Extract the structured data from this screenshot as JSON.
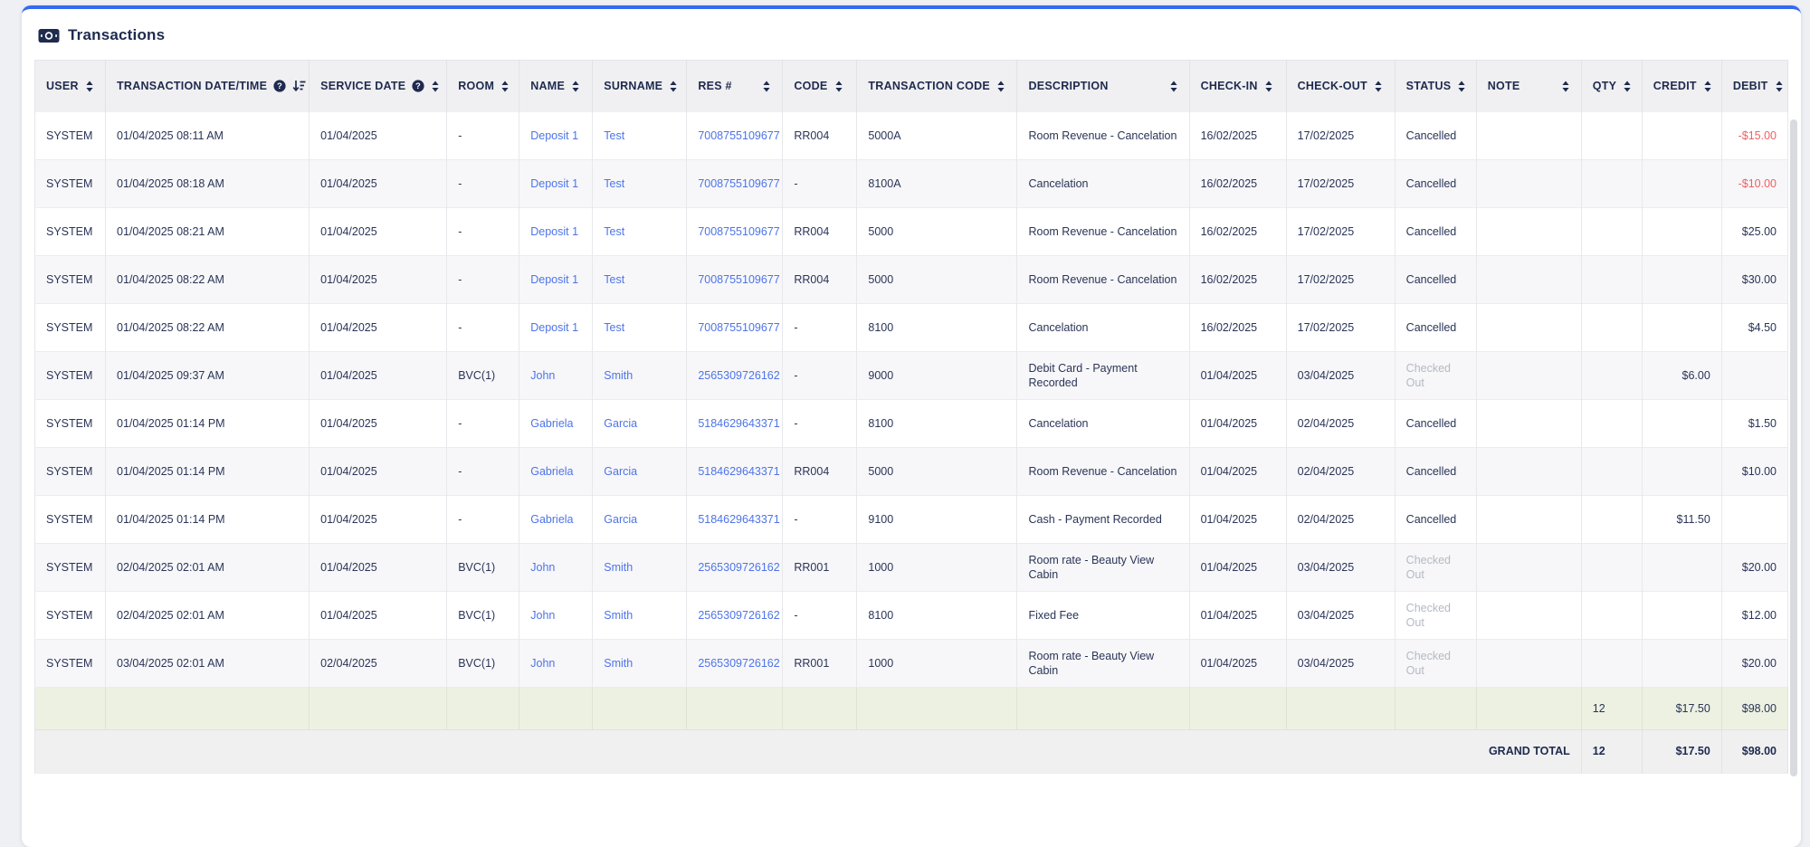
{
  "page": {
    "title": "Transactions"
  },
  "colors": {
    "accent_top": "#3569f0",
    "heading_navy": "#1e2a4e",
    "link_blue": "#4d74e8",
    "negative_red": "#f15f5f",
    "muted_status": "#b4b9c3",
    "subtotal_green_bg": "#ecf1e1",
    "grand_total_bg": "#f0f0f1",
    "header_bg": "#f0f0f2"
  },
  "icons": {
    "title": "money-banknote-icon",
    "help": "help-circle-icon",
    "sort": "sort-arrows-icon",
    "sort_active": "sort-descending-icon"
  },
  "table": {
    "columns": [
      {
        "key": "user",
        "label": "USER",
        "help": false,
        "sort": "default"
      },
      {
        "key": "datetime",
        "label": "TRANSACTION DATE/TIME",
        "help": true,
        "sort": "active-desc"
      },
      {
        "key": "service_date",
        "label": "SERVICE DATE",
        "help": true,
        "sort": "default"
      },
      {
        "key": "room",
        "label": "ROOM",
        "help": false,
        "sort": "default"
      },
      {
        "key": "name",
        "label": "NAME",
        "help": false,
        "sort": "default"
      },
      {
        "key": "surname",
        "label": "SURNAME",
        "help": false,
        "sort": "default"
      },
      {
        "key": "res",
        "label": "RES #",
        "help": false,
        "sort": "default",
        "spread": true
      },
      {
        "key": "code",
        "label": "CODE",
        "help": false,
        "sort": "default"
      },
      {
        "key": "txn_code",
        "label": "TRANSACTION CODE",
        "help": false,
        "sort": "default"
      },
      {
        "key": "description",
        "label": "DESCRIPTION",
        "help": false,
        "sort": "default",
        "spread": true
      },
      {
        "key": "check_in",
        "label": "CHECK-IN",
        "help": false,
        "sort": "default"
      },
      {
        "key": "check_out",
        "label": "CHECK-OUT",
        "help": false,
        "sort": "default"
      },
      {
        "key": "status",
        "label": "STATUS",
        "help": false,
        "sort": "default"
      },
      {
        "key": "note",
        "label": "NOTE",
        "help": false,
        "sort": "default",
        "spread": true
      },
      {
        "key": "qty",
        "label": "QTY",
        "help": false,
        "sort": "default"
      },
      {
        "key": "credit",
        "label": "CREDIT",
        "help": false,
        "sort": "default"
      },
      {
        "key": "debit",
        "label": "DEBIT",
        "help": false,
        "sort": "default"
      }
    ],
    "rows": [
      {
        "user": "SYSTEM",
        "datetime": "01/04/2025 08:11 AM",
        "service_date": "01/04/2025",
        "room": "-",
        "name": "Deposit 1",
        "surname": "Test",
        "res": "7008755109677",
        "code": "RR004",
        "txn_code": "5000A",
        "description": "Room Revenue - Cancelation",
        "check_in": "16/02/2025",
        "check_out": "17/02/2025",
        "status": "Cancelled",
        "note": "",
        "qty": "",
        "credit": "",
        "debit": "-$15.00"
      },
      {
        "user": "SYSTEM",
        "datetime": "01/04/2025 08:18 AM",
        "service_date": "01/04/2025",
        "room": "-",
        "name": "Deposit 1",
        "surname": "Test",
        "res": "7008755109677",
        "code": "-",
        "txn_code": "8100A",
        "description": "Cancelation",
        "check_in": "16/02/2025",
        "check_out": "17/02/2025",
        "status": "Cancelled",
        "note": "",
        "qty": "",
        "credit": "",
        "debit": "-$10.00"
      },
      {
        "user": "SYSTEM",
        "datetime": "01/04/2025 08:21 AM",
        "service_date": "01/04/2025",
        "room": "-",
        "name": "Deposit 1",
        "surname": "Test",
        "res": "7008755109677",
        "code": "RR004",
        "txn_code": "5000",
        "description": "Room Revenue - Cancelation",
        "check_in": "16/02/2025",
        "check_out": "17/02/2025",
        "status": "Cancelled",
        "note": "",
        "qty": "",
        "credit": "",
        "debit": "$25.00"
      },
      {
        "user": "SYSTEM",
        "datetime": "01/04/2025 08:22 AM",
        "service_date": "01/04/2025",
        "room": "-",
        "name": "Deposit 1",
        "surname": "Test",
        "res": "7008755109677",
        "code": "RR004",
        "txn_code": "5000",
        "description": "Room Revenue - Cancelation",
        "check_in": "16/02/2025",
        "check_out": "17/02/2025",
        "status": "Cancelled",
        "note": "",
        "qty": "",
        "credit": "",
        "debit": "$30.00"
      },
      {
        "user": "SYSTEM",
        "datetime": "01/04/2025 08:22 AM",
        "service_date": "01/04/2025",
        "room": "-",
        "name": "Deposit 1",
        "surname": "Test",
        "res": "7008755109677",
        "code": "-",
        "txn_code": "8100",
        "description": "Cancelation",
        "check_in": "16/02/2025",
        "check_out": "17/02/2025",
        "status": "Cancelled",
        "note": "",
        "qty": "",
        "credit": "",
        "debit": "$4.50"
      },
      {
        "user": "SYSTEM",
        "datetime": "01/04/2025 09:37 AM",
        "service_date": "01/04/2025",
        "room": "BVC(1)",
        "name": "John",
        "surname": "Smith",
        "res": "2565309726162",
        "code": "-",
        "txn_code": "9000",
        "description": "Debit Card - Payment Recorded",
        "check_in": "01/04/2025",
        "check_out": "03/04/2025",
        "status": "Checked Out",
        "note": "",
        "qty": "",
        "credit": "$6.00",
        "debit": ""
      },
      {
        "user": "SYSTEM",
        "datetime": "01/04/2025 01:14 PM",
        "service_date": "01/04/2025",
        "room": "-",
        "name": "Gabriela",
        "surname": "Garcia",
        "res": "5184629643371",
        "code": "-",
        "txn_code": "8100",
        "description": "Cancelation",
        "check_in": "01/04/2025",
        "check_out": "02/04/2025",
        "status": "Cancelled",
        "note": "",
        "qty": "",
        "credit": "",
        "debit": "$1.50"
      },
      {
        "user": "SYSTEM",
        "datetime": "01/04/2025 01:14 PM",
        "service_date": "01/04/2025",
        "room": "-",
        "name": "Gabriela",
        "surname": "Garcia",
        "res": "5184629643371",
        "code": "RR004",
        "txn_code": "5000",
        "description": "Room Revenue - Cancelation",
        "check_in": "01/04/2025",
        "check_out": "02/04/2025",
        "status": "Cancelled",
        "note": "",
        "qty": "",
        "credit": "",
        "debit": "$10.00"
      },
      {
        "user": "SYSTEM",
        "datetime": "01/04/2025 01:14 PM",
        "service_date": "01/04/2025",
        "room": "-",
        "name": "Gabriela",
        "surname": "Garcia",
        "res": "5184629643371",
        "code": "-",
        "txn_code": "9100",
        "description": "Cash - Payment Recorded",
        "check_in": "01/04/2025",
        "check_out": "02/04/2025",
        "status": "Cancelled",
        "note": "",
        "qty": "",
        "credit": "$11.50",
        "debit": ""
      },
      {
        "user": "SYSTEM",
        "datetime": "02/04/2025 02:01 AM",
        "service_date": "01/04/2025",
        "room": "BVC(1)",
        "name": "John",
        "surname": "Smith",
        "res": "2565309726162",
        "code": "RR001",
        "txn_code": "1000",
        "description": "Room rate - Beauty View Cabin",
        "check_in": "01/04/2025",
        "check_out": "03/04/2025",
        "status": "Checked Out",
        "note": "",
        "qty": "",
        "credit": "",
        "debit": "$20.00"
      },
      {
        "user": "SYSTEM",
        "datetime": "02/04/2025 02:01 AM",
        "service_date": "01/04/2025",
        "room": "BVC(1)",
        "name": "John",
        "surname": "Smith",
        "res": "2565309726162",
        "code": "-",
        "txn_code": "8100",
        "description": "Fixed Fee",
        "check_in": "01/04/2025",
        "check_out": "03/04/2025",
        "status": "Checked Out",
        "note": "",
        "qty": "",
        "credit": "",
        "debit": "$12.00"
      },
      {
        "user": "SYSTEM",
        "datetime": "03/04/2025 02:01 AM",
        "service_date": "02/04/2025",
        "room": "BVC(1)",
        "name": "John",
        "surname": "Smith",
        "res": "2565309726162",
        "code": "RR001",
        "txn_code": "1000",
        "description": "Room rate - Beauty View Cabin",
        "check_in": "01/04/2025",
        "check_out": "03/04/2025",
        "status": "Checked Out",
        "note": "",
        "qty": "",
        "credit": "",
        "debit": "$20.00"
      }
    ],
    "subtotal": {
      "qty": "12",
      "credit": "$17.50",
      "debit": "$98.00"
    },
    "grand_total": {
      "label": "GRAND TOTAL",
      "qty": "12",
      "credit": "$17.50",
      "debit": "$98.00"
    }
  }
}
